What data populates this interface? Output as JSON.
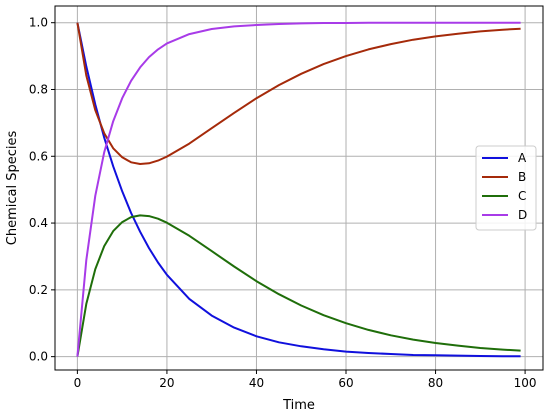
{
  "chart_data": {
    "type": "line",
    "title": "",
    "xlabel": "Time",
    "ylabel": "Chemical Species",
    "xlim": [
      -5,
      104
    ],
    "ylim": [
      -0.04,
      1.05
    ],
    "xticks": [
      0,
      20,
      40,
      60,
      80,
      100
    ],
    "xtick_labels": [
      "0",
      "20",
      "40",
      "60",
      "80",
      "100"
    ],
    "yticks": [
      0.0,
      0.2,
      0.4,
      0.6,
      0.8,
      1.0
    ],
    "ytick_labels": [
      "0.0",
      "0.2",
      "0.4",
      "0.6",
      "0.8",
      "1.0"
    ],
    "grid": true,
    "legend_position": "center-right",
    "x": [
      0,
      2,
      4,
      6,
      8,
      10,
      12,
      14,
      16,
      18,
      20,
      25,
      30,
      35,
      40,
      45,
      50,
      55,
      60,
      65,
      70,
      75,
      80,
      85,
      90,
      95,
      99
    ],
    "series": [
      {
        "name": "A",
        "color": "#1010dd",
        "values": [
          1.0,
          0.869,
          0.755,
          0.656,
          0.57,
          0.495,
          0.43,
          0.374,
          0.325,
          0.282,
          0.245,
          0.173,
          0.123,
          0.087,
          0.061,
          0.043,
          0.031,
          0.022,
          0.015,
          0.011,
          0.008,
          0.005,
          0.004,
          0.003,
          0.002,
          0.001,
          0.001
        ]
      },
      {
        "name": "B",
        "color": "#a52a0a",
        "values": [
          1.0,
          0.842,
          0.738,
          0.669,
          0.624,
          0.597,
          0.582,
          0.577,
          0.579,
          0.587,
          0.599,
          0.638,
          0.684,
          0.73,
          0.774,
          0.813,
          0.847,
          0.876,
          0.9,
          0.92,
          0.936,
          0.949,
          0.959,
          0.967,
          0.974,
          0.979,
          0.982
        ]
      },
      {
        "name": "C",
        "color": "#1f6e0a",
        "values": [
          0.0,
          0.158,
          0.262,
          0.331,
          0.376,
          0.403,
          0.418,
          0.423,
          0.421,
          0.413,
          0.401,
          0.362,
          0.316,
          0.27,
          0.226,
          0.187,
          0.153,
          0.124,
          0.1,
          0.08,
          0.064,
          0.051,
          0.041,
          0.033,
          0.026,
          0.021,
          0.018
        ]
      },
      {
        "name": "D",
        "color": "#a83be8",
        "values": [
          0.0,
          0.289,
          0.482,
          0.612,
          0.705,
          0.774,
          0.826,
          0.866,
          0.897,
          0.92,
          0.938,
          0.966,
          0.981,
          0.989,
          0.993,
          0.996,
          0.998,
          0.999,
          0.999,
          1.0,
          1.0,
          1.0,
          1.0,
          1.0,
          1.0,
          1.0,
          1.0
        ]
      }
    ]
  }
}
